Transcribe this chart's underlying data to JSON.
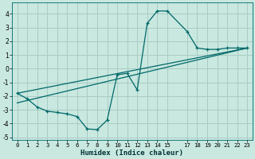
{
  "xlabel": "Humidex (Indice chaleur)",
  "xlim": [
    -0.5,
    23.5
  ],
  "ylim": [
    -5.2,
    4.8
  ],
  "xticks": [
    0,
    1,
    2,
    3,
    4,
    5,
    6,
    7,
    8,
    9,
    10,
    11,
    12,
    13,
    14,
    15,
    17,
    18,
    19,
    20,
    21,
    22,
    23
  ],
  "yticks": [
    -5,
    -4,
    -3,
    -2,
    -1,
    0,
    1,
    2,
    3,
    4
  ],
  "bg_color": "#c8e8e0",
  "grid_color": "#aaccc4",
  "line_color": "#006868",
  "line1_x": [
    0,
    1,
    2,
    3,
    4,
    5,
    6,
    7,
    8,
    9,
    10,
    11,
    12,
    13,
    14,
    15,
    17,
    18,
    19,
    20,
    21,
    22,
    23
  ],
  "line1_y": [
    -1.8,
    -2.2,
    -2.8,
    -3.1,
    -3.2,
    -3.3,
    -3.5,
    -4.4,
    -4.45,
    -3.75,
    -0.45,
    -0.35,
    -1.55,
    3.3,
    4.2,
    4.2,
    2.7,
    1.5,
    1.4,
    1.4,
    1.5,
    1.5,
    1.5
  ],
  "line2_x": [
    0,
    23
  ],
  "line2_y": [
    -1.8,
    1.5
  ],
  "line3_x": [
    0,
    23
  ],
  "line3_y": [
    -2.5,
    1.5
  ]
}
